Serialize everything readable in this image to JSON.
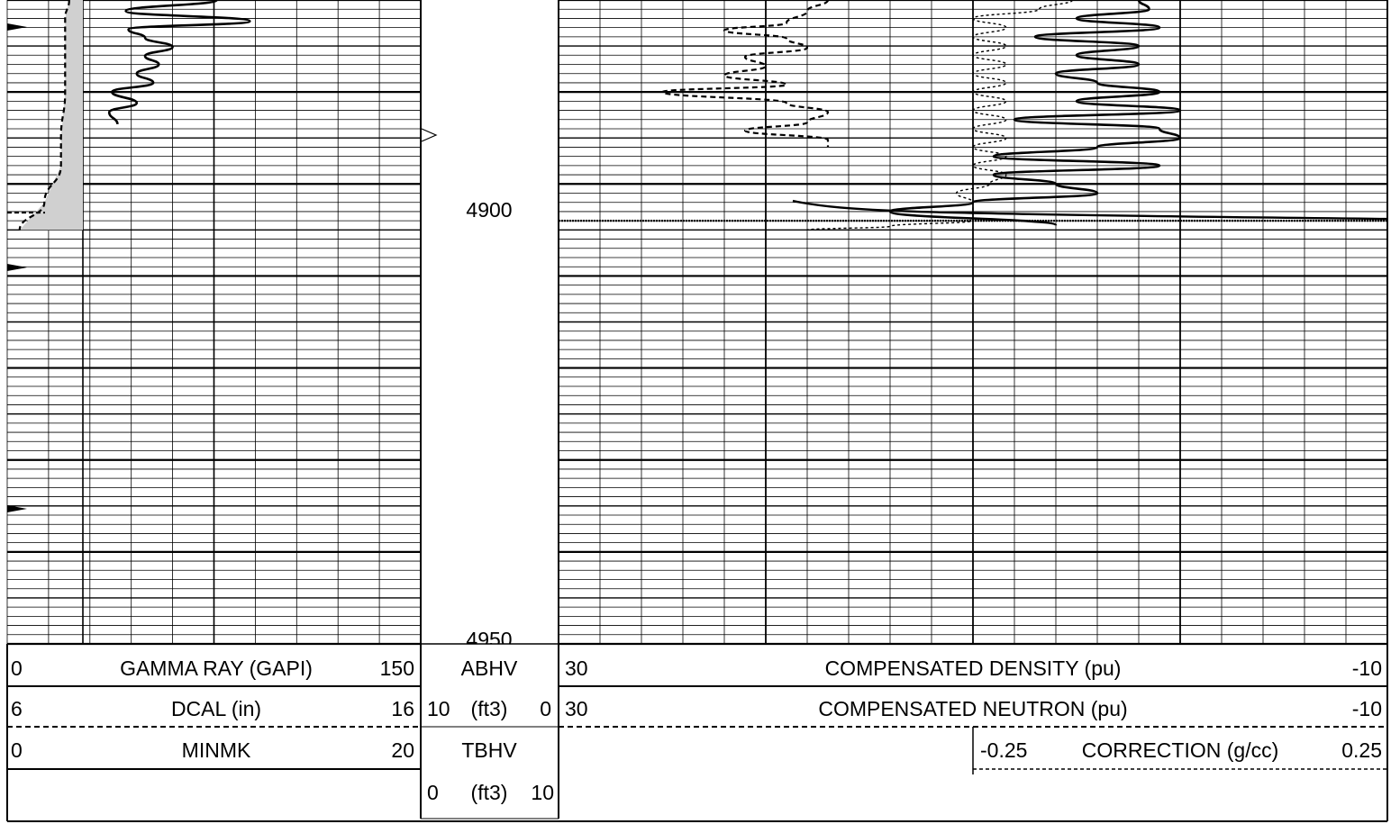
{
  "depth_track": {
    "labels": [
      "4900",
      "4950"
    ]
  },
  "header": {
    "gamma_ray": {
      "min": "0",
      "title": "GAMMA RAY (GAPI)",
      "max": "150"
    },
    "dcal": {
      "min": "6",
      "title": "DCAL (in)",
      "max": "16"
    },
    "minmk": {
      "min": "0",
      "title": "MINMK",
      "max": "20"
    },
    "abhv": {
      "title": "ABHV",
      "min": "10",
      "unit": "(ft3)",
      "max": "0"
    },
    "tbhv": {
      "title": "TBHV",
      "min": "0",
      "unit": "(ft3)",
      "max": "10"
    },
    "density": {
      "min": "30",
      "title": "COMPENSATED DENSITY (pu)",
      "max": "-10"
    },
    "neutron": {
      "min": "30",
      "title": "COMPENSATED NEUTRON (pu)",
      "max": "-10"
    },
    "correction": {
      "min": "-0.25",
      "title": "CORRECTION (g/cc)",
      "max": "0.25"
    }
  },
  "chart_data": {
    "type": "line",
    "depth_unit": "ft",
    "depth_range": [
      4880,
      4950
    ],
    "log_end_depth": 4893.5,
    "series": [
      {
        "name": "GAMMA RAY (GAPI)",
        "style": "solid",
        "track": "left",
        "scale": [
          0,
          150
        ],
        "depth": [
          4880,
          4881.2,
          4882.3,
          4883.2,
          4884.1,
          4885.1,
          4886.1,
          4887.0,
          4888.0,
          4889.0,
          4890.0,
          4891.2,
          4892.2,
          4893.5
        ],
        "values": [
          76,
          43,
          88,
          44,
          50,
          60,
          50,
          55,
          47,
          53,
          38,
          47,
          37,
          40
        ]
      },
      {
        "name": "DCAL (in)",
        "style": "dashed",
        "track": "left",
        "scale": [
          6,
          16
        ],
        "depth": [
          4880,
          4882,
          4886,
          4890,
          4895,
          4898,
          4902,
          4905
        ],
        "values": [
          7.5,
          7.4,
          7.4,
          7.4,
          7.3,
          7.3,
          6.9,
          6.3
        ]
      },
      {
        "name": "COMPENSATED DENSITY (pu)",
        "style": "dashed",
        "track": "right",
        "scale": [
          30,
          -10
        ],
        "depth": [
          4880,
          4881.2,
          4882.5,
          4883.3,
          4884.2,
          4885.2,
          4886.2,
          4887.2,
          4888.2,
          4889.2,
          4890.0,
          4891.2,
          4892.2,
          4893.3,
          4894.2,
          4895.2,
          4896.0
        ],
        "values": [
          17,
          18,
          19,
          22,
          19,
          18,
          21,
          20,
          22,
          19,
          25,
          19,
          17,
          18,
          21,
          17,
          17
        ]
      },
      {
        "name": "COMPENSATED NEUTRON (pu)",
        "style": "solid",
        "track": "right",
        "scale": [
          30,
          -10
        ],
        "depth": [
          4880,
          4881.0,
          4882.0,
          4883.0,
          4884.0,
          4885.0,
          4886.0,
          4887.0,
          4888.0,
          4889.0,
          4890.0,
          4891.0,
          4892.0,
          4893.0,
          4894.0,
          4895.0,
          4896.0,
          4897.0,
          4898.0,
          4899.0,
          4900.0,
          4901.0,
          4902.0,
          4903.0,
          4904.5
        ],
        "values": [
          2,
          1.5,
          5,
          1,
          7,
          2,
          5,
          2,
          6,
          4,
          1,
          5,
          0,
          8,
          1,
          0,
          4,
          9,
          1,
          9,
          6,
          4,
          10,
          14,
          6
        ]
      },
      {
        "name": "CORRECTION (g/cc)",
        "style": "dotted",
        "track": "right",
        "scale": [
          -0.25,
          0.25
        ],
        "depth": [
          4880,
          4881,
          4882,
          4883,
          4884,
          4885,
          4886,
          4887,
          4888,
          4889,
          4890,
          4891,
          4892,
          4893,
          4894,
          4895,
          4896,
          4897,
          4898,
          4899,
          4900,
          4901,
          4902,
          4903,
          4904,
          4904.6,
          4905
        ],
        "values": [
          0.06,
          0.04,
          0.0,
          0.02,
          0.0,
          0.02,
          0.0,
          0.02,
          0.0,
          0.02,
          0.0,
          0.02,
          0.0,
          0.02,
          0.0,
          0.02,
          0.0,
          0.02,
          0.0,
          0.02,
          0.01,
          -0.01,
          0.0,
          0.0,
          0.0,
          -0.05,
          -0.1
        ]
      }
    ]
  }
}
